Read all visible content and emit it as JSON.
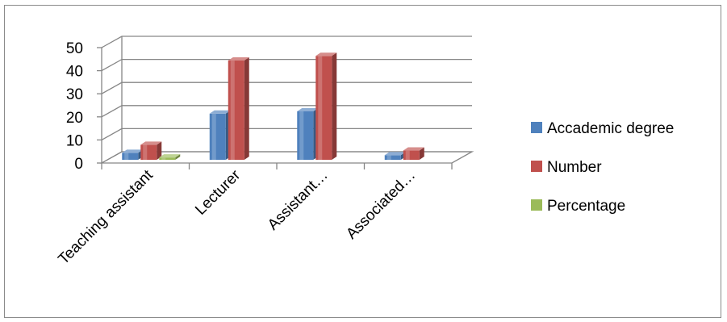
{
  "chart_data": {
    "type": "bar",
    "view": "3d-clustered-column",
    "categories": [
      "Teaching assistant",
      "Lecturer",
      "Assistant…",
      "Associated…"
    ],
    "series": [
      {
        "name": "Accademic degree",
        "color": "#4f81bd",
        "values": [
          3,
          20,
          21,
          2
        ]
      },
      {
        "name": "Number",
        "color": "#c0504d",
        "values": [
          6.5,
          43,
          45,
          4
        ]
      },
      {
        "name": "Percentage",
        "color": "#9bbb59",
        "values": [
          1,
          0,
          0,
          0
        ]
      }
    ],
    "ylim": [
      0,
      50
    ],
    "yticks": [
      0,
      10,
      20,
      30,
      40,
      50
    ],
    "grid": true,
    "legend": "right"
  }
}
